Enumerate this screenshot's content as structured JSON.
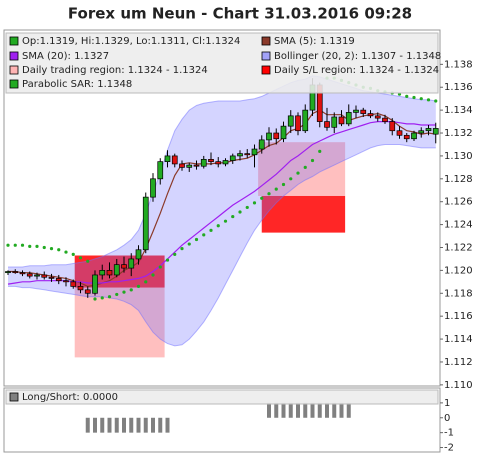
{
  "chart_data": [
    {
      "type": "candlestick",
      "title": "Forex um Neun - Chart 31.03.2016 09:28",
      "legend": "top-left",
      "ylim": [
        1.1099,
        1.141
      ],
      "yticks": [
        {
          "value": 1.11,
          "label": "1.110"
        },
        1.112,
        1.114,
        1.116,
        1.118,
        {
          "value": 1.12,
          "label": "1.120"
        },
        1.122,
        1.124,
        1.126,
        1.128,
        {
          "value": 1.13,
          "label": "1.130"
        },
        1.132,
        1.134,
        1.136,
        1.138
      ],
      "series": [
        {
          "name": "Op:1.1319, Hi:1.1329, Lo:1.1311, Cl:1.1324",
          "type": "candlestick",
          "color": "#22aa22",
          "down_color": "#dd1111",
          "open": [
            1.1198,
            1.1199,
            1.1198,
            1.1197,
            1.1195,
            1.1196,
            1.1194,
            1.1193,
            1.1191,
            1.119,
            1.1186,
            1.1183,
            1.118,
            1.1196,
            1.12,
            1.1196,
            1.1205,
            1.1202,
            1.121,
            1.1218,
            1.1264,
            1.128,
            1.1295,
            1.13,
            1.1293,
            1.129,
            1.1292,
            1.1291,
            1.1297,
            1.1295,
            1.1293,
            1.1296,
            1.13,
            1.1302,
            1.1301,
            1.1306,
            1.1314,
            1.132,
            1.1315,
            1.1326,
            1.1335,
            1.1322,
            1.134,
            1.1362,
            1.133,
            1.1325,
            1.1334,
            1.1328,
            1.1338,
            1.134,
            1.1337,
            1.1335,
            1.1333,
            1.133,
            1.1322,
            1.1318,
            1.1315,
            1.132,
            1.1322,
            1.1319
          ],
          "high": [
            1.12,
            1.1201,
            1.12,
            1.1199,
            1.1198,
            1.1199,
            1.1197,
            1.1196,
            1.1194,
            1.1192,
            1.119,
            1.1186,
            1.12,
            1.1205,
            1.1207,
            1.121,
            1.1212,
            1.1215,
            1.1222,
            1.1268,
            1.1285,
            1.1298,
            1.1305,
            1.1302,
            1.1296,
            1.1294,
            1.1296,
            1.13,
            1.1303,
            1.1299,
            1.1298,
            1.1302,
            1.1305,
            1.1306,
            1.131,
            1.1318,
            1.1325,
            1.1324,
            1.133,
            1.134,
            1.1338,
            1.1345,
            1.1368,
            1.1364,
            1.1342,
            1.1338,
            1.134,
            1.1345,
            1.1344,
            1.1342,
            1.134,
            1.1338,
            1.1336,
            1.1333,
            1.1326,
            1.132,
            1.1322,
            1.1325,
            1.1327,
            1.1329
          ],
          "low": [
            1.1196,
            1.1197,
            1.1195,
            1.1193,
            1.1192,
            1.1192,
            1.119,
            1.1188,
            1.1186,
            1.1184,
            1.118,
            1.1176,
            1.1178,
            1.1192,
            1.1193,
            1.1194,
            1.1198,
            1.1195,
            1.1205,
            1.1215,
            1.126,
            1.1275,
            1.129,
            1.129,
            1.1287,
            1.1286,
            1.1288,
            1.1289,
            1.1292,
            1.129,
            1.1291,
            1.1293,
            1.1296,
            1.1298,
            1.129,
            1.1302,
            1.1308,
            1.131,
            1.1312,
            1.132,
            1.1318,
            1.132,
            1.1335,
            1.1325,
            1.1322,
            1.132,
            1.1326,
            1.1326,
            1.1333,
            1.1334,
            1.1333,
            1.133,
            1.1328,
            1.1318,
            1.1315,
            1.1312,
            1.1313,
            1.1316,
            1.1318,
            1.1311
          ],
          "close": [
            1.1199,
            1.1198,
            1.1197,
            1.1195,
            1.1196,
            1.1194,
            1.1193,
            1.1191,
            1.119,
            1.1186,
            1.1183,
            1.118,
            1.1196,
            1.12,
            1.1196,
            1.1205,
            1.1202,
            1.121,
            1.1218,
            1.1264,
            1.128,
            1.1295,
            1.13,
            1.1293,
            1.129,
            1.1292,
            1.1291,
            1.1297,
            1.1295,
            1.1293,
            1.1296,
            1.13,
            1.1302,
            1.1301,
            1.1306,
            1.1314,
            1.132,
            1.1315,
            1.1326,
            1.1335,
            1.1322,
            1.134,
            1.1362,
            1.133,
            1.1325,
            1.1334,
            1.1328,
            1.1338,
            1.134,
            1.1337,
            1.1335,
            1.1333,
            1.133,
            1.1322,
            1.1318,
            1.1315,
            1.132,
            1.1322,
            1.1324,
            1.1324
          ]
        },
        {
          "name": "SMA (5): 1.1319",
          "type": "line",
          "color": "#8b3a2a",
          "values": [
            1.1199,
            1.1199,
            1.1198,
            1.1198,
            1.1197,
            1.1196,
            1.1195,
            1.1194,
            1.1193,
            1.1191,
            1.1189,
            1.1186,
            1.1187,
            1.1189,
            1.1191,
            1.1195,
            1.12,
            1.1203,
            1.1207,
            1.1219,
            1.1234,
            1.125,
            1.1267,
            1.1283,
            1.1293,
            1.1294,
            1.1293,
            1.1293,
            1.1293,
            1.1294,
            1.1294,
            1.1296,
            1.1297,
            1.1298,
            1.1301,
            1.1305,
            1.1309,
            1.1311,
            1.1316,
            1.1322,
            1.1324,
            1.1328,
            1.1337,
            1.134,
            1.1336,
            1.1336,
            1.1336,
            1.1331,
            1.1333,
            1.1335,
            1.1336,
            1.1337,
            1.1335,
            1.1331,
            1.1326,
            1.1322,
            1.1321,
            1.1319,
            1.132,
            1.1319
          ]
        },
        {
          "name": "SMA (20): 1.1327",
          "type": "line",
          "color": "#a020f0",
          "values": [
            1.1188,
            1.1189,
            1.119,
            1.119,
            1.1191,
            1.1191,
            1.1191,
            1.1191,
            1.1191,
            1.119,
            1.119,
            1.1189,
            1.1189,
            1.1189,
            1.119,
            1.119,
            1.1191,
            1.1192,
            1.1193,
            1.1195,
            1.1199,
            1.1204,
            1.121,
            1.1216,
            1.1222,
            1.1227,
            1.1232,
            1.1237,
            1.1242,
            1.1247,
            1.1252,
            1.1257,
            1.1261,
            1.1265,
            1.1269,
            1.1274,
            1.1279,
            1.1284,
            1.129,
            1.1296,
            1.13,
            1.1305,
            1.131,
            1.1313,
            1.1316,
            1.1319,
            1.1321,
            1.1323,
            1.1325,
            1.1327,
            1.1329,
            1.133,
            1.133,
            1.133,
            1.1329,
            1.1328,
            1.1328,
            1.1327,
            1.1327,
            1.1327
          ]
        },
        {
          "name": "Bollinger (20, 2): 1.1307 - 1.1348",
          "type": "band",
          "color": "#7070ff",
          "upper": [
            1.1203,
            1.1203,
            1.1203,
            1.1204,
            1.1204,
            1.1204,
            1.1205,
            1.1205,
            1.1205,
            1.1206,
            1.1207,
            1.1208,
            1.121,
            1.1212,
            1.1215,
            1.1218,
            1.1222,
            1.1227,
            1.1235,
            1.125,
            1.1268,
            1.1285,
            1.1305,
            1.1322,
            1.1332,
            1.134,
            1.1344,
            1.1346,
            1.1347,
            1.1348,
            1.1348,
            1.1348,
            1.1348,
            1.1349,
            1.135,
            1.1352,
            1.1355,
            1.1358,
            1.1361,
            1.1364,
            1.1366,
            1.1367,
            1.137,
            1.1369,
            1.1367,
            1.1365,
            1.1363,
            1.1361,
            1.1359,
            1.1357,
            1.1356,
            1.1355,
            1.1354,
            1.1353,
            1.1352,
            1.1351,
            1.135,
            1.1349,
            1.1349,
            1.1348
          ],
          "lower": [
            1.1186,
            1.1186,
            1.1185,
            1.1185,
            1.1184,
            1.1183,
            1.1182,
            1.1181,
            1.118,
            1.1179,
            1.1178,
            1.1177,
            1.1177,
            1.1177,
            1.1176,
            1.1175,
            1.1173,
            1.117,
            1.1165,
            1.1155,
            1.1146,
            1.114,
            1.1136,
            1.1134,
            1.1135,
            1.114,
            1.1147,
            1.1155,
            1.1165,
            1.1176,
            1.1188,
            1.12,
            1.1212,
            1.1224,
            1.1235,
            1.1244,
            1.1252,
            1.1259,
            1.1265,
            1.127,
            1.1275,
            1.1279,
            1.1282,
            1.1286,
            1.1289,
            1.1292,
            1.1295,
            1.1298,
            1.1301,
            1.1304,
            1.1307,
            1.1309,
            1.131,
            1.131,
            1.131,
            1.1309,
            1.1308,
            1.1307,
            1.1307,
            1.1307
          ]
        },
        {
          "name": "Daily trading region: 1.1324 - 1.1324",
          "type": "region",
          "color": "#ffb4b4",
          "regions": [
            {
              "start": 9.2,
              "end": 21.6,
              "top": 1.1185,
              "bottom": 1.1124
            },
            {
              "start": 34.5,
              "end": 46.5,
              "top": 1.1312,
              "bottom": 1.1265
            }
          ]
        },
        {
          "name": "Daily S/L region: 1.1324 - 1.1324",
          "type": "region",
          "color": "#ff0000",
          "regions": [
            {
              "start": 9.2,
              "end": 21.6,
              "top": 1.1213,
              "bottom": 1.1185
            },
            {
              "start": 35.0,
              "end": 46.5,
              "top": 1.1265,
              "bottom": 1.1233
            }
          ]
        },
        {
          "name": "Parabolic SAR: 1.1348",
          "type": "dots",
          "color": "#22aa22",
          "values": [
            1.1222,
            1.1222,
            1.1222,
            1.1221,
            1.1221,
            1.122,
            1.1219,
            1.1218,
            1.1216,
            1.1214,
            1.1211,
            1.1208,
            1.1175,
            1.1176,
            1.1177,
            1.1179,
            1.1181,
            1.1183,
            1.1186,
            1.119,
            1.1196,
            1.1203,
            1.1209,
            1.1214,
            1.1219,
            1.1223,
            1.1227,
            1.1231,
            1.1235,
            1.1239,
            1.1243,
            1.1247,
            1.1251,
            1.1255,
            1.1259,
            1.1263,
            1.1267,
            1.1271,
            1.1275,
            1.128,
            1.1285,
            1.129,
            1.1296,
            1.1304,
            1.1368,
            1.1368,
            1.1366,
            1.1364,
            1.1362,
            1.136,
            1.1359,
            1.1357,
            1.1356,
            1.1355,
            1.1354,
            1.1352,
            1.1351,
            1.135,
            1.1349,
            1.1348
          ]
        }
      ]
    },
    {
      "type": "bar",
      "legend": "top-left",
      "ylim": [
        -2.3,
        2
      ],
      "yticks": [
        -2,
        -1,
        0,
        1
      ],
      "series": [
        {
          "name": "Long/Short: 0.0000",
          "color": "#808080",
          "values": [
            0,
            0,
            0,
            0,
            0,
            0,
            0,
            0,
            0,
            0,
            0,
            -1,
            -1,
            -1,
            -1,
            -1,
            -1,
            -1,
            -1,
            -1,
            -1,
            -1,
            -1,
            0,
            0,
            0,
            0,
            0,
            0,
            0,
            0,
            0,
            0,
            0,
            0,
            0,
            1,
            1,
            1,
            1,
            1,
            1,
            1,
            1,
            1,
            1,
            1,
            1,
            0,
            0,
            0,
            0,
            0,
            0,
            0,
            0,
            0,
            0,
            0,
            0
          ]
        }
      ]
    }
  ]
}
